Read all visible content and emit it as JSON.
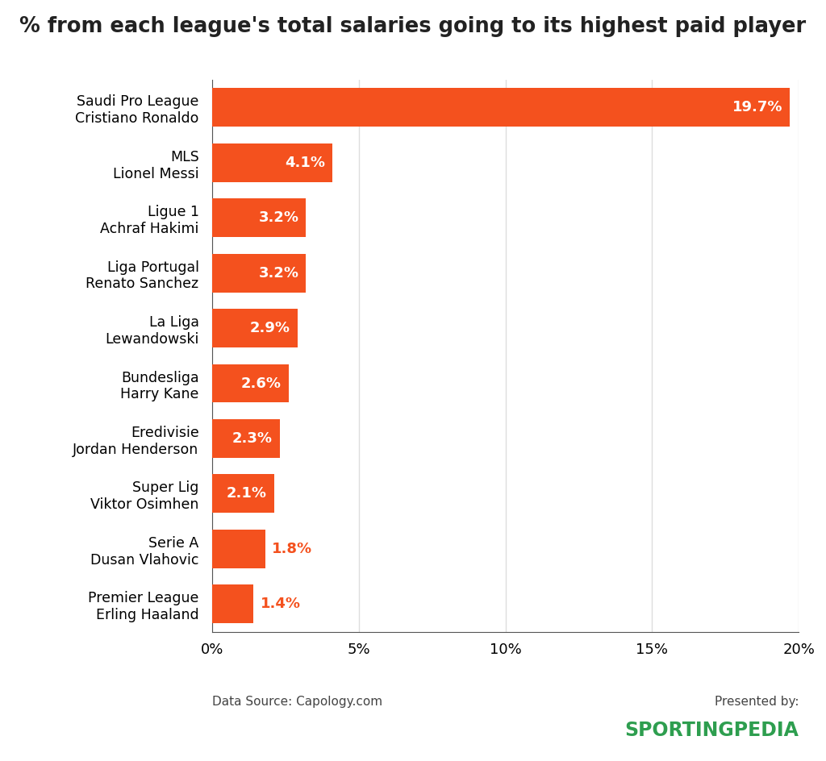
{
  "chart_data": {
    "type": "bar",
    "orientation": "horizontal",
    "title": "% from each league's total salaries going to its highest paid player",
    "categories": [
      "Saudi Pro League\nCristiano Ronaldo",
      "MLS\nLionel Messi",
      "Ligue 1\nAchraf Hakimi",
      "Liga Portugal\nRenato Sanchez",
      "La Liga\nLewandowski",
      "Bundesliga\nHarry Kane",
      "Eredivisie\nJordan Henderson",
      "Super Lig\nViktor Osimhen",
      "Serie A\nDusan Vlahovic",
      "Premier League\nErling Haaland"
    ],
    "values": [
      19.7,
      4.1,
      3.2,
      3.2,
      2.9,
      2.6,
      2.3,
      2.1,
      1.8,
      1.4
    ],
    "value_labels": [
      "19.7%",
      "4.1%",
      "3.2%",
      "3.2%",
      "2.9%",
      "2.6%",
      "2.3%",
      "2.1%",
      "1.8%",
      "1.4%"
    ],
    "data_labels": true,
    "color": "#f4511e",
    "xlim": [
      0,
      20
    ],
    "xticks": [
      {
        "value": 0,
        "label": "0%"
      },
      {
        "value": 5,
        "label": "5%"
      },
      {
        "value": 10,
        "label": "10%"
      },
      {
        "value": 15,
        "label": "15%"
      },
      {
        "value": 20,
        "label": "20%"
      }
    ],
    "grid": true,
    "annotations": [
      "Data Source: Capology.com",
      "Presented by:",
      "SPORTINGPEDIA"
    ]
  }
}
